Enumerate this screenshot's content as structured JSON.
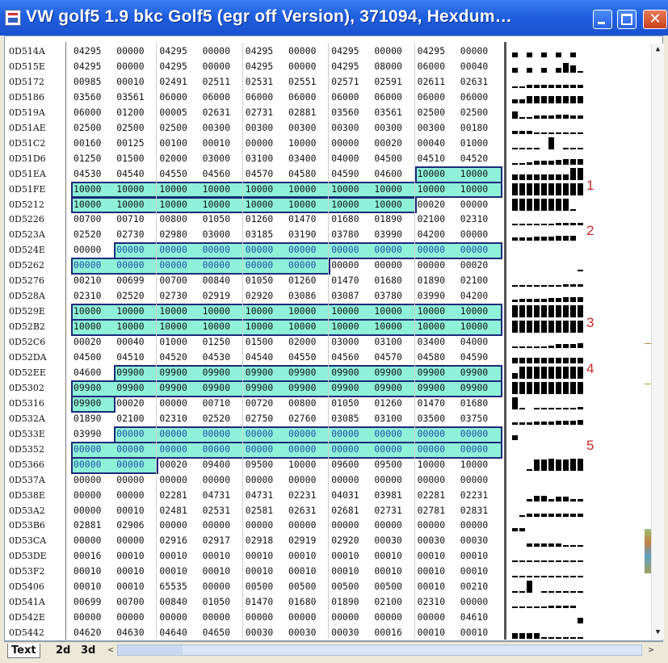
{
  "window": {
    "title": "VW golf5 1.9 bkc Golf5 (egr off Version), 371094, Hexdum…",
    "controls": {
      "minimize": "_",
      "maximize": "□",
      "close": "✕"
    }
  },
  "colors": {
    "highlight_fill": "#8ff2d8",
    "highlight_border": "#1a2a7a",
    "marker": "#c9282d"
  },
  "rows": [
    {
      "addr": "0D514A",
      "cells": [
        "04295",
        "00000",
        "04295",
        "00000",
        "04295",
        "00000",
        "04295",
        "00000",
        "04295",
        "00000"
      ]
    },
    {
      "addr": "0D515E",
      "cells": [
        "04295",
        "00000",
        "04295",
        "00000",
        "04295",
        "00000",
        "04295",
        "08000",
        "06000",
        "00040"
      ]
    },
    {
      "addr": "0D5172",
      "cells": [
        "00985",
        "00010",
        "02491",
        "02511",
        "02531",
        "02551",
        "02571",
        "02591",
        "02611",
        "02631"
      ]
    },
    {
      "addr": "0D5186",
      "cells": [
        "03560",
        "03561",
        "06000",
        "06000",
        "06000",
        "06000",
        "06000",
        "06000",
        "06000",
        "06000"
      ]
    },
    {
      "addr": "0D519A",
      "cells": [
        "06000",
        "01200",
        "00005",
        "02631",
        "02731",
        "02881",
        "03560",
        "03561",
        "02500",
        "02500"
      ]
    },
    {
      "addr": "0D51AE",
      "cells": [
        "02500",
        "02500",
        "02500",
        "00300",
        "00300",
        "00300",
        "00300",
        "00300",
        "00300",
        "00180"
      ]
    },
    {
      "addr": "0D51C2",
      "cells": [
        "00160",
        "00125",
        "00100",
        "00010",
        "00000",
        "10000",
        "00000",
        "00020",
        "00040",
        "01000"
      ]
    },
    {
      "addr": "0D51D6",
      "cells": [
        "01250",
        "01500",
        "02000",
        "03000",
        "03100",
        "03400",
        "04000",
        "04500",
        "04510",
        "04520"
      ]
    },
    {
      "addr": "0D51EA",
      "cells": [
        "04530",
        "04540",
        "04550",
        "04560",
        "04570",
        "04580",
        "04590",
        "04600",
        "10000",
        "10000"
      ]
    },
    {
      "addr": "0D51FE",
      "cells": [
        "10000",
        "10000",
        "10000",
        "10000",
        "10000",
        "10000",
        "10000",
        "10000",
        "10000",
        "10000"
      ]
    },
    {
      "addr": "0D5212",
      "cells": [
        "10000",
        "10000",
        "10000",
        "10000",
        "10000",
        "10000",
        "10000",
        "10000",
        "00020",
        "00000"
      ]
    },
    {
      "addr": "0D5226",
      "cells": [
        "00700",
        "00710",
        "00800",
        "01050",
        "01260",
        "01470",
        "01680",
        "01890",
        "02100",
        "02310"
      ]
    },
    {
      "addr": "0D523A",
      "cells": [
        "02520",
        "02730",
        "02980",
        "03000",
        "03185",
        "03190",
        "03780",
        "03990",
        "04200",
        "00000"
      ]
    },
    {
      "addr": "0D524E",
      "cells": [
        "00000",
        "00000",
        "00000",
        "00000",
        "00000",
        "00000",
        "00000",
        "00000",
        "00000",
        "00000"
      ]
    },
    {
      "addr": "0D5262",
      "cells": [
        "00000",
        "00000",
        "00000",
        "00000",
        "00000",
        "00000",
        "00000",
        "00000",
        "00000",
        "00020"
      ]
    },
    {
      "addr": "0D5276",
      "cells": [
        "00210",
        "00699",
        "00700",
        "00840",
        "01050",
        "01260",
        "01470",
        "01680",
        "01890",
        "02100"
      ]
    },
    {
      "addr": "0D528A",
      "cells": [
        "02310",
        "02520",
        "02730",
        "02919",
        "02920",
        "03086",
        "03087",
        "03780",
        "03990",
        "04200"
      ]
    },
    {
      "addr": "0D529E",
      "cells": [
        "10000",
        "10000",
        "10000",
        "10000",
        "10000",
        "10000",
        "10000",
        "10000",
        "10000",
        "10000"
      ]
    },
    {
      "addr": "0D52B2",
      "cells": [
        "10000",
        "10000",
        "10000",
        "10000",
        "10000",
        "10000",
        "10000",
        "10000",
        "10000",
        "10000"
      ]
    },
    {
      "addr": "0D52C6",
      "cells": [
        "00020",
        "00040",
        "01000",
        "01250",
        "01500",
        "02000",
        "03000",
        "03100",
        "03400",
        "04000"
      ]
    },
    {
      "addr": "0D52DA",
      "cells": [
        "04500",
        "04510",
        "04520",
        "04530",
        "04540",
        "04550",
        "04560",
        "04570",
        "04580",
        "04590"
      ]
    },
    {
      "addr": "0D52EE",
      "cells": [
        "04600",
        "09900",
        "09900",
        "09900",
        "09900",
        "09900",
        "09900",
        "09900",
        "09900",
        "09900"
      ]
    },
    {
      "addr": "0D5302",
      "cells": [
        "09900",
        "09900",
        "09900",
        "09900",
        "09900",
        "09900",
        "09900",
        "09900",
        "09900",
        "09900"
      ]
    },
    {
      "addr": "0D5316",
      "cells": [
        "09900",
        "00020",
        "00000",
        "00710",
        "00720",
        "00800",
        "01050",
        "01260",
        "01470",
        "01680"
      ]
    },
    {
      "addr": "0D532A",
      "cells": [
        "01890",
        "02100",
        "02310",
        "02520",
        "02750",
        "02760",
        "03085",
        "03100",
        "03500",
        "03750"
      ]
    },
    {
      "addr": "0D533E",
      "cells": [
        "03990",
        "00000",
        "00000",
        "00000",
        "00000",
        "00000",
        "00000",
        "00000",
        "00000",
        "00000"
      ]
    },
    {
      "addr": "0D5352",
      "cells": [
        "00000",
        "00000",
        "00000",
        "00000",
        "00000",
        "00000",
        "00000",
        "00000",
        "00000",
        "00000"
      ]
    },
    {
      "addr": "0D5366",
      "cells": [
        "00000",
        "00000",
        "00020",
        "09400",
        "09500",
        "10000",
        "09600",
        "09500",
        "10000",
        "10000"
      ]
    },
    {
      "addr": "0D537A",
      "cells": [
        "00000",
        "00000",
        "00000",
        "00000",
        "00000",
        "00000",
        "00000",
        "00000",
        "00000",
        "00000"
      ]
    },
    {
      "addr": "0D538E",
      "cells": [
        "00000",
        "00000",
        "02281",
        "04731",
        "04731",
        "02231",
        "04031",
        "03981",
        "02281",
        "02231"
      ]
    },
    {
      "addr": "0D53A2",
      "cells": [
        "00000",
        "00010",
        "02481",
        "02531",
        "02581",
        "02631",
        "02681",
        "02731",
        "02781",
        "02831"
      ]
    },
    {
      "addr": "0D53B6",
      "cells": [
        "02881",
        "02906",
        "00000",
        "00000",
        "00000",
        "00000",
        "00000",
        "00000",
        "00000",
        "00000"
      ]
    },
    {
      "addr": "0D53CA",
      "cells": [
        "00000",
        "00000",
        "02916",
        "02917",
        "02918",
        "02919",
        "02920",
        "00030",
        "00030",
        "00030"
      ]
    },
    {
      "addr": "0D53DE",
      "cells": [
        "00016",
        "00010",
        "00010",
        "00010",
        "00010",
        "00010",
        "00010",
        "00010",
        "00010",
        "00010"
      ]
    },
    {
      "addr": "0D53F2",
      "cells": [
        "00010",
        "00010",
        "00010",
        "00010",
        "00010",
        "00010",
        "00010",
        "00010",
        "00010",
        "00010"
      ]
    },
    {
      "addr": "0D5406",
      "cells": [
        "00010",
        "00010",
        "65535",
        "00000",
        "00500",
        "00500",
        "00500",
        "00500",
        "00010",
        "00210"
      ]
    },
    {
      "addr": "0D541A",
      "cells": [
        "00699",
        "00700",
        "00840",
        "01050",
        "01470",
        "01680",
        "01890",
        "02100",
        "02310",
        "00000"
      ]
    },
    {
      "addr": "0D542E",
      "cells": [
        "00000",
        "00000",
        "00000",
        "00000",
        "00000",
        "00000",
        "00000",
        "00000",
        "00000",
        "04610"
      ]
    },
    {
      "addr": "0D5442",
      "cells": [
        "04620",
        "04630",
        "04640",
        "04650",
        "00030",
        "00030",
        "00030",
        "00016",
        "00010",
        "00010"
      ]
    }
  ],
  "markers": [
    {
      "label": "1",
      "row": 9
    },
    {
      "label": "2",
      "row": 12
    },
    {
      "label": "3",
      "row": 18
    },
    {
      "label": "4",
      "row": 21
    },
    {
      "label": "5",
      "row": 26
    }
  ],
  "highlight_maps": [
    {
      "id": "1",
      "segments": [
        [
          8,
          8,
          9
        ],
        [
          9,
          0,
          9
        ],
        [
          10,
          0,
          7
        ]
      ],
      "blue": false
    },
    {
      "id": "2",
      "segments": [
        [
          13,
          1,
          9
        ],
        [
          14,
          0,
          5
        ]
      ],
      "blue": true
    },
    {
      "id": "3",
      "segments": [
        [
          17,
          0,
          9
        ],
        [
          18,
          0,
          9
        ]
      ],
      "blue": false
    },
    {
      "id": "4",
      "segments": [
        [
          21,
          1,
          9
        ],
        [
          22,
          0,
          9
        ],
        [
          23,
          0,
          0
        ]
      ],
      "blue": false
    },
    {
      "id": "5",
      "segments": [
        [
          25,
          1,
          9
        ],
        [
          26,
          0,
          9
        ],
        [
          27,
          0,
          1
        ]
      ],
      "blue": true
    }
  ],
  "tabs": [
    "Text",
    "2d",
    "3d"
  ],
  "scroll": {
    "left": "<",
    "right": ">",
    "up": "▲",
    "down": "▼"
  }
}
